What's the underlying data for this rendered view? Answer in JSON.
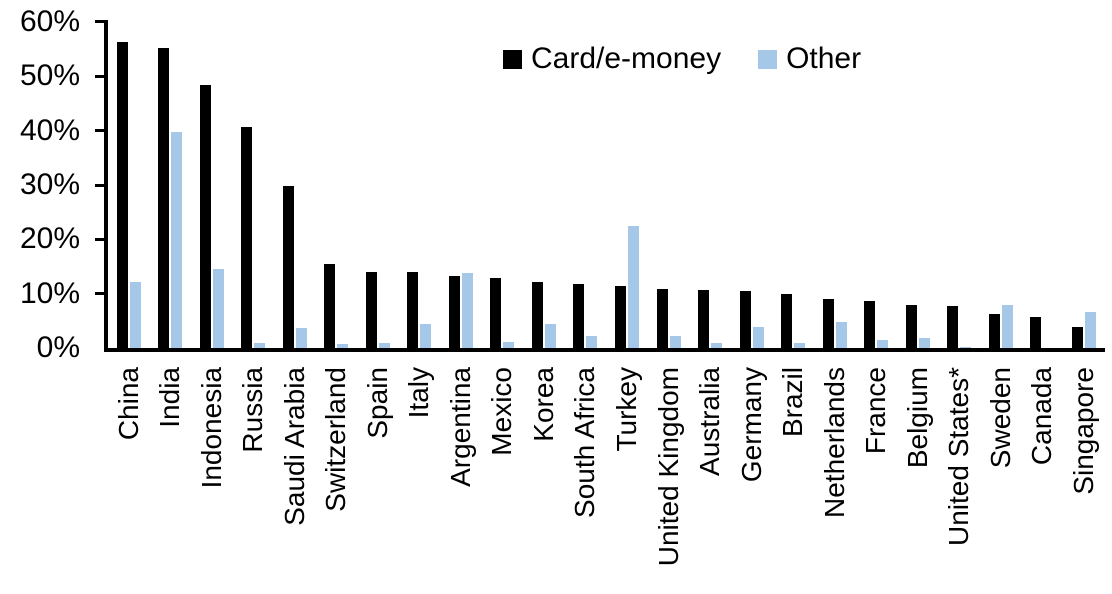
{
  "chart_data": {
    "type": "bar",
    "title": "",
    "xlabel": "",
    "ylabel": "",
    "ylim": [
      0,
      60
    ],
    "grid": false,
    "legend_position": "top-center",
    "yticks": [
      {
        "label": "60%",
        "value": 60
      },
      {
        "label": "50%",
        "value": 50
      },
      {
        "label": "40%",
        "value": 40
      },
      {
        "label": "30%",
        "value": 30
      },
      {
        "label": "20%",
        "value": 20
      },
      {
        "label": "10%",
        "value": 10
      },
      {
        "label": "0%",
        "value": 0
      }
    ],
    "categories": [
      "China",
      "India",
      "Indonesia",
      "Russia",
      "Saudi Arabia",
      "Switzerland",
      "Spain",
      "Italy",
      "Argentina",
      "Mexico",
      "Korea",
      "South Africa",
      "Turkey",
      "United Kingdom",
      "Australia",
      "Germany",
      "Brazil",
      "Netherlands",
      "France",
      "Belgium",
      "United States*",
      "Sweden",
      "Canada",
      "Singapore"
    ],
    "series": [
      {
        "name": "Card/e-money",
        "color": "#000000",
        "values": [
          56.3,
          55.1,
          48.3,
          40.6,
          29.9,
          15.5,
          14.1,
          14.0,
          13.3,
          12.9,
          12.2,
          11.8,
          11.5,
          10.9,
          10.7,
          10.6,
          9.9,
          9.1,
          8.6,
          8.0,
          7.8,
          6.3,
          5.8,
          4.0
        ]
      },
      {
        "name": "Other",
        "color": "#A5C8E8",
        "values": [
          12.2,
          39.7,
          14.5,
          1.0,
          3.8,
          0.8,
          0.9,
          4.4,
          13.8,
          1.2,
          4.4,
          2.3,
          22.5,
          2.3,
          0.9,
          3.9,
          1.0,
          4.8,
          1.5,
          1.9,
          0.3,
          7.9,
          0,
          6.7
        ]
      }
    ]
  }
}
